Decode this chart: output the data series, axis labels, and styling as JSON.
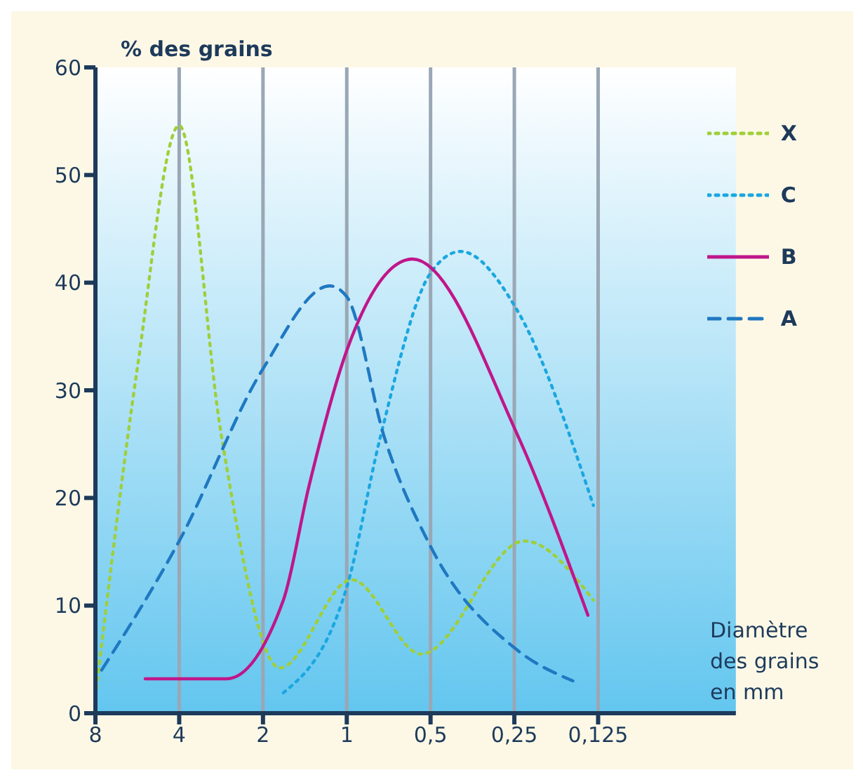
{
  "chart_data": {
    "type": "line",
    "xlabel": "Diamètre des grains en mm",
    "ylabel": "% des grains",
    "xlim": [
      8,
      0.04
    ],
    "xticks": [
      8,
      4,
      2,
      1,
      {
        "value": 0.5,
        "label": "0,5"
      },
      {
        "value": 0.25,
        "label": "0,25"
      },
      {
        "value": 0.125,
        "label": "0,125"
      }
    ],
    "ylim": [
      0,
      60
    ],
    "yticks": [
      0,
      10,
      20,
      30,
      40,
      50,
      60
    ],
    "log": "x",
    "grid": "x",
    "legend": "top right",
    "marker": "none",
    "series": [
      {
        "name": "X",
        "color": "#9fcf3a",
        "line_style": "dotted",
        "x": [
          8,
          5.66,
          4,
          2.83,
          1.74,
          0.96,
          0.54,
          0.23,
          0.13
        ],
        "values": [
          1.5,
          32,
          54.6,
          26,
          4.2,
          12.4,
          5.5,
          16,
          10.5
        ]
      },
      {
        "name": "C",
        "color": "#1aa7e0",
        "line_style": "dotted",
        "x": [
          1.69,
          1,
          0.76,
          0.5,
          0.39,
          0.245,
          0.13
        ],
        "values": [
          1.9,
          11.7,
          25.5,
          40.9,
          42.9,
          37.5,
          19.3
        ]
      },
      {
        "name": "B",
        "color": "#c0168a",
        "line_style": "solid",
        "x": [
          5.3,
          2.7,
          1.69,
          1.37,
          1,
          0.58,
          0.245,
          0.136
        ],
        "values": [
          3.2,
          3.2,
          10.5,
          21,
          33.7,
          42.2,
          26,
          9.1
        ]
      },
      {
        "name": "A",
        "color": "#1f78c1",
        "line_style": "dashed",
        "x": [
          7.6,
          4,
          2,
          1.15,
          1,
          0.73,
          0.5,
          0.245,
          0.154
        ],
        "values": [
          4,
          16,
          32,
          39.7,
          38.7,
          25.5,
          15.5,
          5.9,
          3
        ]
      }
    ]
  }
}
